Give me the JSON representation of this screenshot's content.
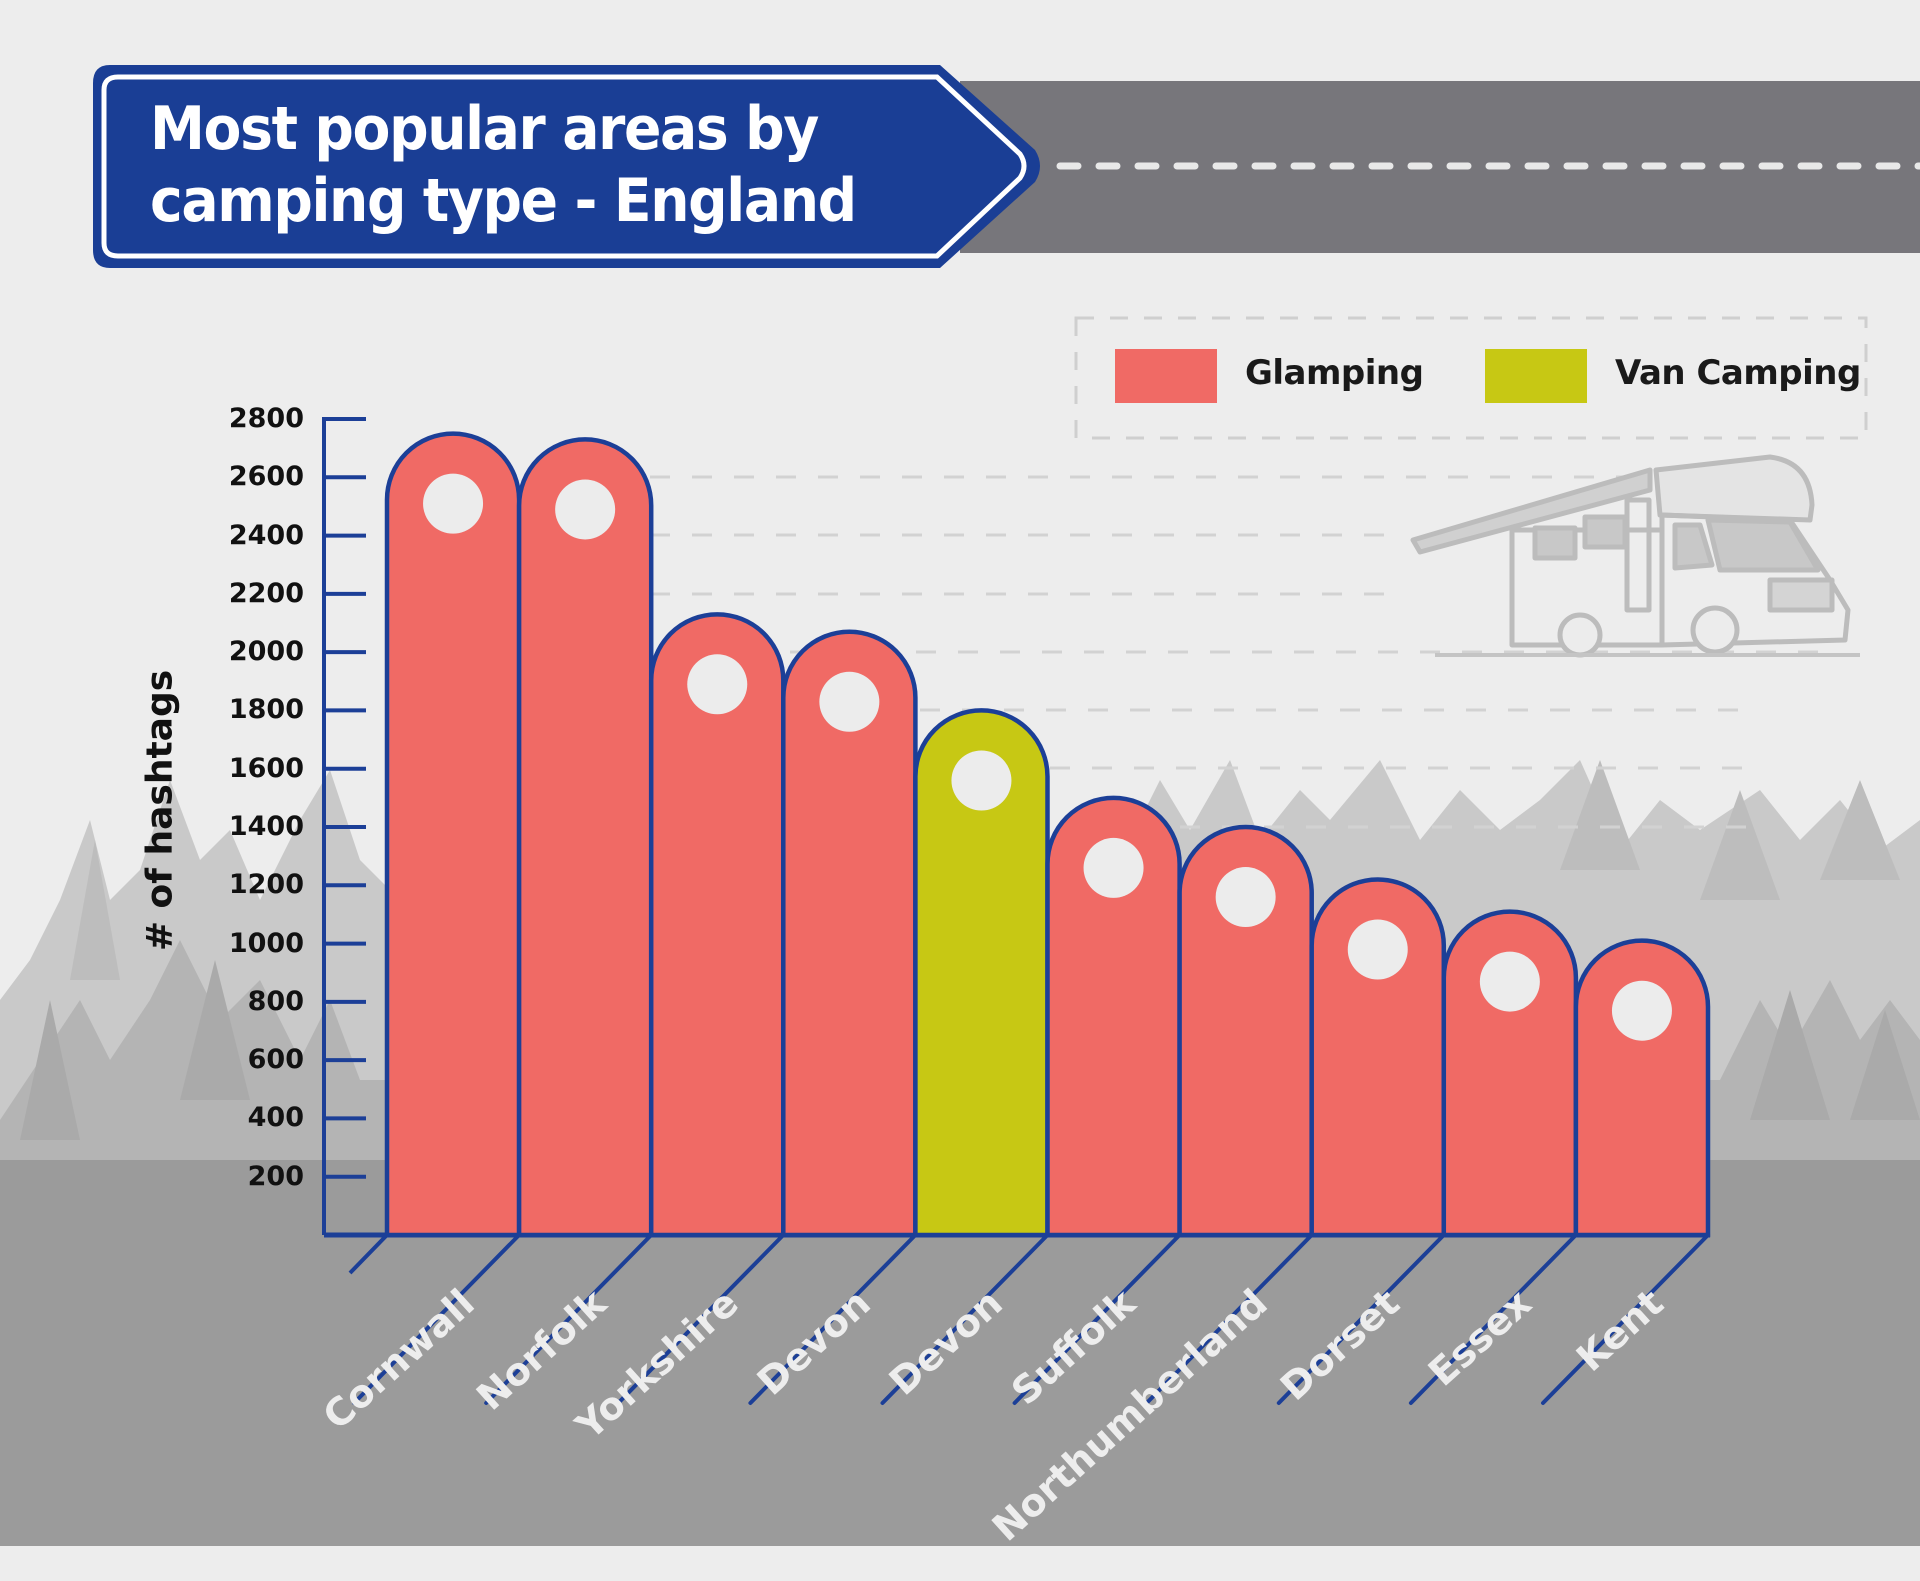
{
  "title": {
    "line1": "Most popular areas by",
    "line2": "camping type - England"
  },
  "legend": {
    "items": [
      {
        "label": "Glamping",
        "color": "#f06a65"
      },
      {
        "label": "Van Camping",
        "color": "#c7c814"
      }
    ]
  },
  "colors": {
    "background": "#ededed",
    "sign_blue": "#1a3e95",
    "road_gray": "#77767b",
    "axis_blue": "#1c3f97",
    "glamping": "#f06a65",
    "van_camping": "#c7c814",
    "forest_ground": "#9b9b9b"
  },
  "axis": {
    "ylabel": "# of hashtags",
    "yticks": [
      "2800",
      "2600",
      "2400",
      "2200",
      "2000",
      "1800",
      "1600",
      "1400",
      "1200",
      "1000",
      "800",
      "600",
      "400",
      "200"
    ]
  },
  "chart_data": {
    "type": "bar",
    "title": "Most popular areas by camping type - England",
    "xlabel": "",
    "ylabel": "# of hashtags",
    "ylim": [
      0,
      2800
    ],
    "yticks": [
      200,
      400,
      600,
      800,
      1000,
      1200,
      1400,
      1600,
      1800,
      2000,
      2200,
      2400,
      2600,
      2800
    ],
    "grid": "dashed horizontal lines (partial)",
    "legend_position": "top-right",
    "categories": [
      "Cornwall",
      "Norfolk",
      "Yorkshire",
      "Devon",
      "Devon",
      "Suffolk",
      "Northumberland",
      "Dorset",
      "Essex",
      "Kent"
    ],
    "values": [
      2750,
      2730,
      2130,
      2070,
      1800,
      1500,
      1400,
      1220,
      1110,
      1010
    ],
    "camping_type": [
      "Glamping",
      "Glamping",
      "Glamping",
      "Glamping",
      "Van Camping",
      "Glamping",
      "Glamping",
      "Glamping",
      "Glamping",
      "Glamping"
    ],
    "series": [
      {
        "name": "Glamping",
        "values": [
          2750,
          2730,
          2130,
          2070,
          null,
          1500,
          1400,
          1220,
          1110,
          1010
        ]
      },
      {
        "name": "Van Camping",
        "values": [
          null,
          null,
          null,
          null,
          1800,
          null,
          null,
          null,
          null,
          null
        ]
      }
    ]
  }
}
